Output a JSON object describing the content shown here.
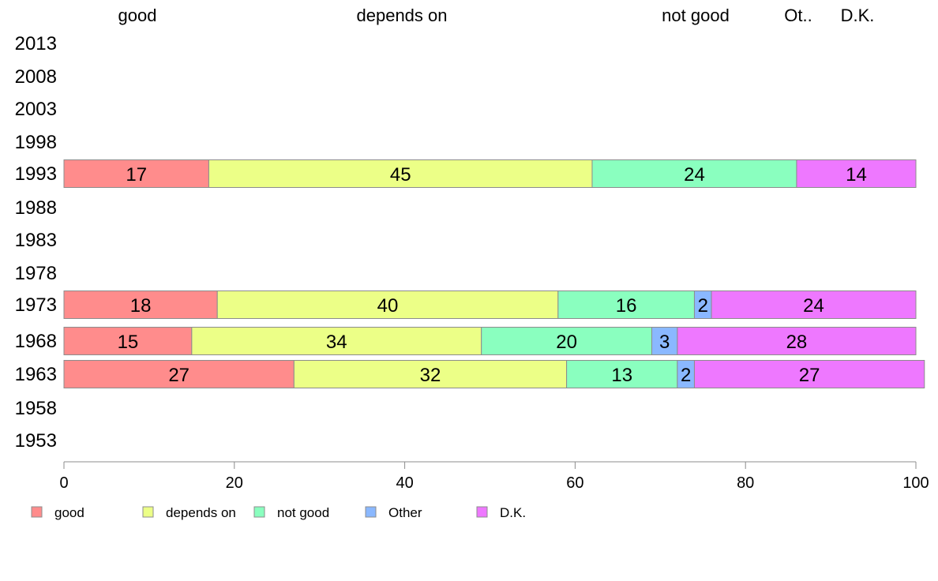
{
  "chart_data": {
    "type": "bar",
    "orientation": "horizontal",
    "stacked": true,
    "title": "",
    "xlabel": "",
    "ylabel": "",
    "xlim": [
      0,
      100
    ],
    "x_ticks": [
      "0",
      "20",
      "40",
      "60",
      "80",
      "100"
    ],
    "categories": [
      "2013",
      "2008",
      "2003",
      "1998",
      "1993",
      "1988",
      "1983",
      "1978",
      "1973",
      "1968",
      "1963",
      "1958",
      "1953"
    ],
    "top_labels": [
      "good",
      "depends on",
      "not good",
      "Ot..",
      "D.K."
    ],
    "series": [
      {
        "name": "good",
        "color": "#ff8c8c",
        "values": [
          null,
          null,
          null,
          null,
          17,
          null,
          null,
          null,
          18,
          15,
          27,
          null,
          null
        ]
      },
      {
        "name": "depends on",
        "color": "#ecff87",
        "values": [
          null,
          null,
          null,
          null,
          45,
          null,
          null,
          null,
          40,
          34,
          32,
          null,
          null
        ]
      },
      {
        "name": "not good",
        "color": "#8affbf",
        "values": [
          null,
          null,
          null,
          null,
          24,
          null,
          null,
          null,
          16,
          20,
          13,
          null,
          null
        ]
      },
      {
        "name": "Other",
        "color": "#8ab8ff",
        "values": [
          null,
          null,
          null,
          null,
          0,
          null,
          null,
          null,
          2,
          3,
          2,
          null,
          null
        ]
      },
      {
        "name": "D.K.",
        "color": "#ee78ff",
        "values": [
          null,
          null,
          null,
          null,
          14,
          null,
          null,
          null,
          24,
          28,
          27,
          null,
          null
        ]
      }
    ],
    "grid": false,
    "legend_position": "bottom"
  }
}
